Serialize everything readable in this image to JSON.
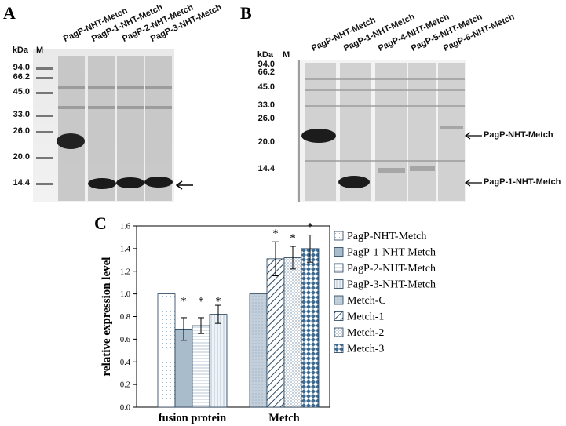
{
  "panel_a": {
    "letter": "A",
    "kda_header": "kDa",
    "marker_header": "M",
    "markers": [
      "94.0",
      "66.2",
      "45.0",
      "33.0",
      "26.0",
      "20.0",
      "14.4"
    ],
    "lanes": [
      "PagP-NHT-Metch",
      "PagP-1-NHT-Metch",
      "PagP-2-NHT-Metch",
      "PagP-3-NHT-Metch"
    ]
  },
  "panel_b": {
    "letter": "B",
    "kda_header": "kDa",
    "marker_header": "M",
    "markers": [
      "94.0",
      "66.2",
      "45.0",
      "33.0",
      "26.0",
      "20.0",
      "14.4"
    ],
    "lanes": [
      "PagP-NHT-Metch",
      "PagP-1-NHT-Metch",
      "PagP-4-NHT-Metch",
      "PagP-5-NHT-Metch",
      "PagP-6-NHT-Metch"
    ],
    "band_labels": [
      "PagP-NHT-Metch",
      "PagP-1-NHT-Metch"
    ]
  },
  "panel_c": {
    "letter": "C"
  },
  "chart_data": {
    "type": "bar",
    "ylabel": "relative expression level",
    "xlabel": "",
    "ylim": [
      0,
      1.6
    ],
    "yticks": [
      "0.0",
      "0.2",
      "0.4",
      "0.6",
      "0.8",
      "1.0",
      "1.2",
      "1.4",
      "1.6"
    ],
    "grid": false,
    "legend_position": "right",
    "groups": [
      {
        "label": "fusion protein",
        "bars": [
          {
            "name": "PagP-NHT-Metch",
            "value": 1.0,
            "error": 0,
            "star": ""
          },
          {
            "name": "PagP-1-NHT-Metch",
            "value": 0.69,
            "error": 0.1,
            "star": "*"
          },
          {
            "name": "PagP-2-NHT-Metch",
            "value": 0.72,
            "error": 0.07,
            "star": "*"
          },
          {
            "name": "PagP-3-NHT-Metch",
            "value": 0.82,
            "error": 0.08,
            "star": "*"
          }
        ]
      },
      {
        "label": "Metch",
        "bars": [
          {
            "name": "Metch-C",
            "value": 1.0,
            "error": 0,
            "star": ""
          },
          {
            "name": "Metch-1",
            "value": 1.31,
            "error": 0.15,
            "star": "*"
          },
          {
            "name": "Metch-2",
            "value": 1.32,
            "error": 0.1,
            "star": "*"
          },
          {
            "name": "Metch-3",
            "value": 1.4,
            "error": 0.12,
            "star": "*"
          }
        ]
      }
    ],
    "legend": [
      "PagP-NHT-Metch",
      "PagP-1-NHT-Metch",
      "PagP-2-NHT-Metch",
      "PagP-3-NHT-Metch",
      "Metch-C",
      "Metch-1",
      "Metch-2",
      "Metch-3"
    ],
    "colors": {
      "fill_light": "#ffffff",
      "fill_blue": "#a9bccb",
      "fill_pale": "#f2f2f2",
      "fill_lightblue": "#dce6ee",
      "fill_gray_blue": "#c3d0dc",
      "stroke": "#1f3b55"
    }
  }
}
